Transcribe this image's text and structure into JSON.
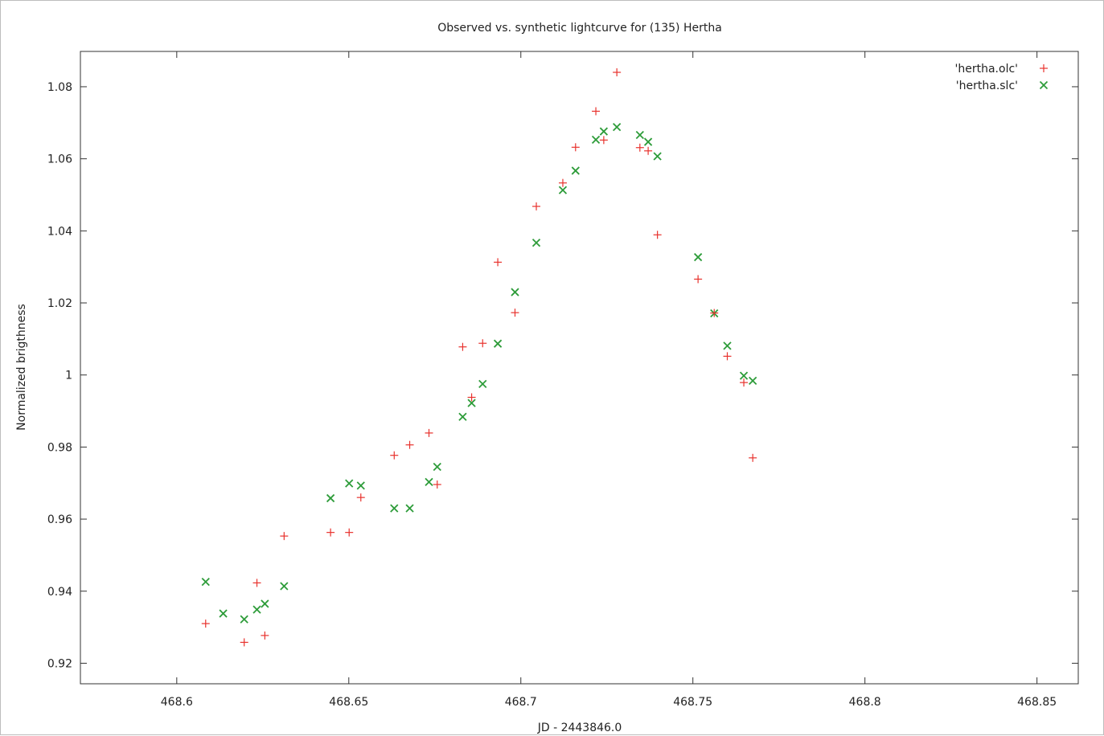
{
  "chart_data": {
    "type": "scatter",
    "title": "Observed vs. synthetic lightcurve for (135) Hertha",
    "xlabel": "JD - 2443846.0",
    "ylabel": "Normalized brigthness",
    "xlim": [
      468.572,
      468.862
    ],
    "ylim": [
      0.9143,
      1.0898
    ],
    "xticks": [
      468.6,
      468.65,
      468.7,
      468.75,
      468.8,
      468.85
    ],
    "xtick_labels": [
      "468.6",
      "468.65",
      "468.7",
      "468.75",
      "468.8",
      "468.85"
    ],
    "yticks": [
      0.92,
      0.94,
      0.96,
      0.98,
      1.0,
      1.02,
      1.04,
      1.06,
      1.08
    ],
    "ytick_labels": [
      "0.92",
      "0.94",
      "0.96",
      "0.98",
      "1",
      "1.02",
      "1.04",
      "1.06",
      "1.08"
    ],
    "grid": false,
    "legend_position": "top-right",
    "series": [
      {
        "name": "'hertha.olc'",
        "marker": "plus",
        "color": "#e8322d",
        "points": [
          [
            468.6084,
            0.931
          ],
          [
            468.6196,
            0.9258
          ],
          [
            468.6233,
            0.9423
          ],
          [
            468.6256,
            0.9277
          ],
          [
            468.6312,
            0.9553
          ],
          [
            468.6447,
            0.9563
          ],
          [
            468.6501,
            0.9563
          ],
          [
            468.6535,
            0.966
          ],
          [
            468.6632,
            0.9777
          ],
          [
            468.6677,
            0.9806
          ],
          [
            468.6733,
            0.9839
          ],
          [
            468.6757,
            0.9696
          ],
          [
            468.6831,
            1.0078
          ],
          [
            468.6857,
            0.9938
          ],
          [
            468.6889,
            1.0088
          ],
          [
            468.6933,
            1.0313
          ],
          [
            468.6983,
            1.0173
          ],
          [
            468.7045,
            1.0468
          ],
          [
            468.7122,
            1.0533
          ],
          [
            468.7159,
            1.0632
          ],
          [
            468.7218,
            1.0732
          ],
          [
            468.7241,
            1.0652
          ],
          [
            468.7279,
            1.084
          ],
          [
            468.7346,
            1.0631
          ],
          [
            468.737,
            1.0622
          ],
          [
            468.7397,
            1.0389
          ],
          [
            468.7515,
            1.0266
          ],
          [
            468.7562,
            1.0172
          ],
          [
            468.76,
            1.0052
          ],
          [
            468.7648,
            0.9979
          ],
          [
            468.7674,
            0.977
          ]
        ]
      },
      {
        "name": "'hertha.slc'",
        "marker": "cross",
        "color": "#2e9c3a",
        "points": [
          [
            468.6084,
            0.9426
          ],
          [
            468.6135,
            0.9338
          ],
          [
            468.6196,
            0.9322
          ],
          [
            468.6233,
            0.9349
          ],
          [
            468.6256,
            0.9365
          ],
          [
            468.6312,
            0.9414
          ],
          [
            468.6447,
            0.9658
          ],
          [
            468.6501,
            0.9699
          ],
          [
            468.6535,
            0.9693
          ],
          [
            468.6632,
            0.963
          ],
          [
            468.6677,
            0.963
          ],
          [
            468.6733,
            0.9703
          ],
          [
            468.6757,
            0.9745
          ],
          [
            468.6831,
            0.9884
          ],
          [
            468.6857,
            0.9922
          ],
          [
            468.6889,
            0.9975
          ],
          [
            468.6933,
            1.0087
          ],
          [
            468.6983,
            1.023
          ],
          [
            468.7045,
            1.0367
          ],
          [
            468.7122,
            1.0513
          ],
          [
            468.7159,
            1.0567
          ],
          [
            468.7218,
            1.0653
          ],
          [
            468.7241,
            1.0676
          ],
          [
            468.7279,
            1.0688
          ],
          [
            468.7346,
            1.0666
          ],
          [
            468.737,
            1.0647
          ],
          [
            468.7397,
            1.0607
          ],
          [
            468.7515,
            1.0327
          ],
          [
            468.7562,
            1.0171
          ],
          [
            468.76,
            1.0081
          ],
          [
            468.7648,
            0.9998
          ],
          [
            468.7674,
            0.9984
          ]
        ]
      }
    ]
  }
}
